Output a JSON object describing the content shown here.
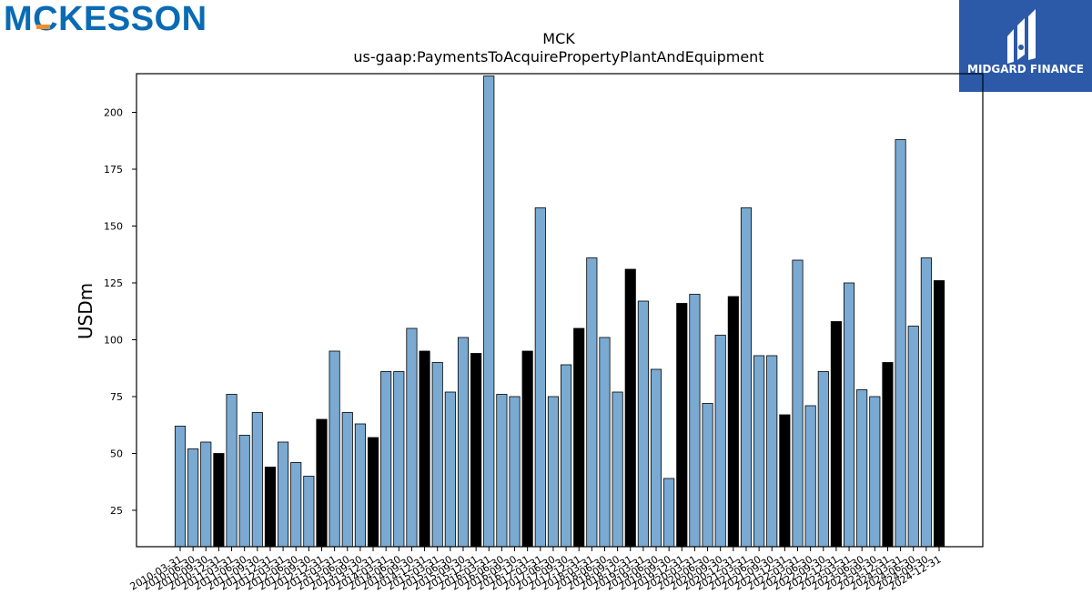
{
  "logos": {
    "company": {
      "text": "MCKESSON",
      "color": "#0a6bb5",
      "accent": "#f18d27"
    },
    "partner": {
      "text": "MIDGARD FINANCE",
      "color": "#2c5aa9"
    }
  },
  "chart_data": {
    "type": "bar",
    "title": "MCK",
    "subtitle": "us-gaap:PaymentsToAcquirePropertyPlantAndEquipment",
    "xlabel": "",
    "ylabel": "USDm",
    "ylim": [
      9,
      217
    ],
    "yticks": [
      25,
      50,
      75,
      100,
      125,
      150,
      175,
      200
    ],
    "grid": false,
    "colors": {
      "quarter": "#7aaad1",
      "fiscal_year_end": "#000000"
    },
    "categories": [
      "2010-03-31",
      "2010-06-30",
      "2010-09-30",
      "2010-12-31",
      "2011-03-31",
      "2011-06-30",
      "2011-09-30",
      "2011-12-31",
      "2012-03-31",
      "2012-06-30",
      "2012-09-30",
      "2012-12-31",
      "2013-03-31",
      "2013-06-30",
      "2013-09-30",
      "2013-12-31",
      "2014-03-31",
      "2014-06-30",
      "2014-09-30",
      "2014-12-31",
      "2015-03-31",
      "2015-06-30",
      "2015-09-30",
      "2015-12-31",
      "2016-03-31",
      "2016-06-30",
      "2016-09-30",
      "2016-12-31",
      "2017-03-31",
      "2017-06-30",
      "2017-09-30",
      "2017-12-31",
      "2018-03-31",
      "2018-06-30",
      "2018-09-30",
      "2018-12-31",
      "2019-03-31",
      "2019-06-30",
      "2019-09-30",
      "2019-12-31",
      "2020-03-31",
      "2020-06-30",
      "2020-09-30",
      "2020-12-31",
      "2021-03-31",
      "2021-06-30",
      "2021-09-30",
      "2021-12-31",
      "2022-03-31",
      "2022-06-30",
      "2022-09-30",
      "2022-12-31",
      "2023-03-31",
      "2023-06-30",
      "2023-09-30",
      "2023-12-31",
      "2024-03-31",
      "2024-06-30",
      "2024-09-30",
      "2024-12-31"
    ],
    "values": [
      62,
      52,
      55,
      50,
      76,
      58,
      68,
      44,
      55,
      46,
      40,
      65,
      95,
      68,
      63,
      57,
      86,
      86,
      105,
      95,
      90,
      77,
      101,
      94,
      216,
      76,
      75,
      95,
      158,
      75,
      89,
      105,
      136,
      101,
      77,
      131,
      117,
      87,
      39,
      116,
      120,
      72,
      102,
      119,
      158,
      93,
      93,
      67,
      135,
      71,
      86,
      108,
      125,
      78,
      75,
      90,
      188,
      106,
      136,
      126
    ],
    "highlight": [
      false,
      false,
      false,
      true,
      false,
      false,
      false,
      true,
      false,
      false,
      false,
      true,
      false,
      false,
      false,
      true,
      false,
      false,
      false,
      true,
      false,
      false,
      false,
      true,
      false,
      false,
      false,
      true,
      false,
      false,
      false,
      true,
      false,
      false,
      false,
      true,
      false,
      false,
      false,
      true,
      false,
      false,
      false,
      true,
      false,
      false,
      false,
      true,
      false,
      false,
      false,
      true,
      false,
      false,
      false,
      true,
      false,
      false,
      false,
      true
    ]
  }
}
